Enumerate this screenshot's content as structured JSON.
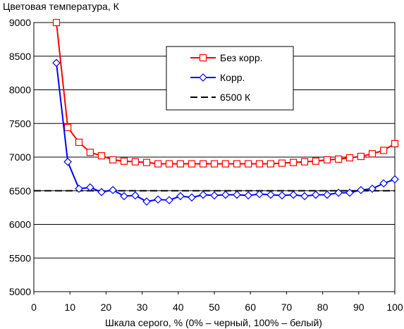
{
  "chart_data": {
    "type": "line",
    "title": "Цветовая температура, К",
    "xlabel": "Шкала серого, % (0% – черный, 100% – белый)",
    "ylabel": "",
    "xlim": [
      0,
      100
    ],
    "ylim": [
      5000,
      9000
    ],
    "xticks": [
      "0",
      "10",
      "20",
      "30",
      "40",
      "50",
      "60",
      "70",
      "80",
      "90",
      "100"
    ],
    "yticks": [
      "5000",
      "5500",
      "6000",
      "6500",
      "7000",
      "7500",
      "8000",
      "8500",
      "9000"
    ],
    "grid": true,
    "legend_position": "top-center",
    "x": [
      6.25,
      9.4,
      12.5,
      15.6,
      18.75,
      21.9,
      25,
      28.1,
      31.25,
      34.4,
      37.5,
      40.6,
      43.75,
      46.9,
      50,
      53.1,
      56.25,
      59.4,
      62.5,
      65.6,
      68.75,
      71.9,
      75,
      78.1,
      81.25,
      84.4,
      87.5,
      90.6,
      93.75,
      96.9,
      100
    ],
    "series": [
      {
        "name": "Без корр.",
        "color": "#ff0000",
        "marker": "square",
        "values": [
          9000,
          7440,
          7220,
          7070,
          7020,
          6960,
          6940,
          6930,
          6920,
          6900,
          6900,
          6900,
          6900,
          6900,
          6900,
          6900,
          6900,
          6900,
          6900,
          6900,
          6910,
          6920,
          6930,
          6940,
          6960,
          6970,
          6990,
          7010,
          7050,
          7100,
          7200
        ]
      },
      {
        "name": "Корр.",
        "color": "#0000ff",
        "marker": "diamond",
        "values": [
          8400,
          6930,
          6530,
          6550,
          6480,
          6510,
          6420,
          6430,
          6340,
          6370,
          6360,
          6420,
          6400,
          6440,
          6430,
          6440,
          6440,
          6430,
          6450,
          6440,
          6430,
          6440,
          6420,
          6440,
          6440,
          6470,
          6470,
          6510,
          6530,
          6610,
          6670
        ]
      },
      {
        "name": "6500 К",
        "color": "#000000",
        "dashed": true,
        "constant": 6500
      }
    ]
  }
}
